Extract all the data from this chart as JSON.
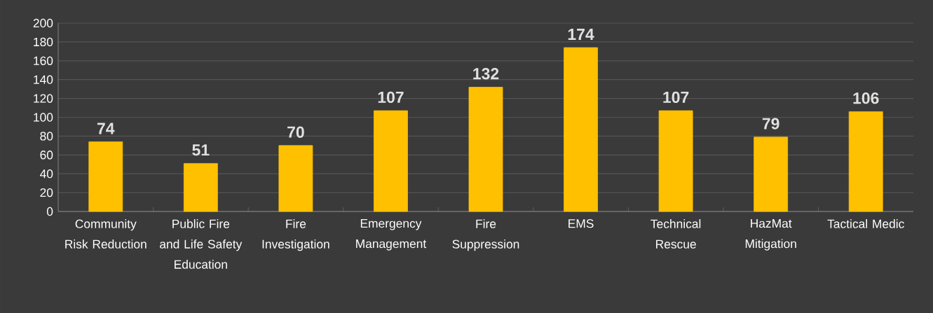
{
  "chart_data": {
    "type": "bar",
    "categories": [
      "Community Risk Reduction",
      "Public Fire and Life Safety Education",
      "Fire Investigation",
      "Emergency Management",
      "Fire Suppression",
      "EMS",
      "Technical Rescue",
      "HazMat Mitigation",
      "Tactical Medic"
    ],
    "values": [
      74,
      51,
      70,
      107,
      132,
      174,
      107,
      79,
      106
    ],
    "color": "#ffc000",
    "ylim": [
      0,
      200
    ],
    "yticks": [
      0,
      20,
      40,
      60,
      80,
      100,
      120,
      140,
      160,
      180,
      200
    ],
    "grid": "y",
    "data_labels": true
  }
}
